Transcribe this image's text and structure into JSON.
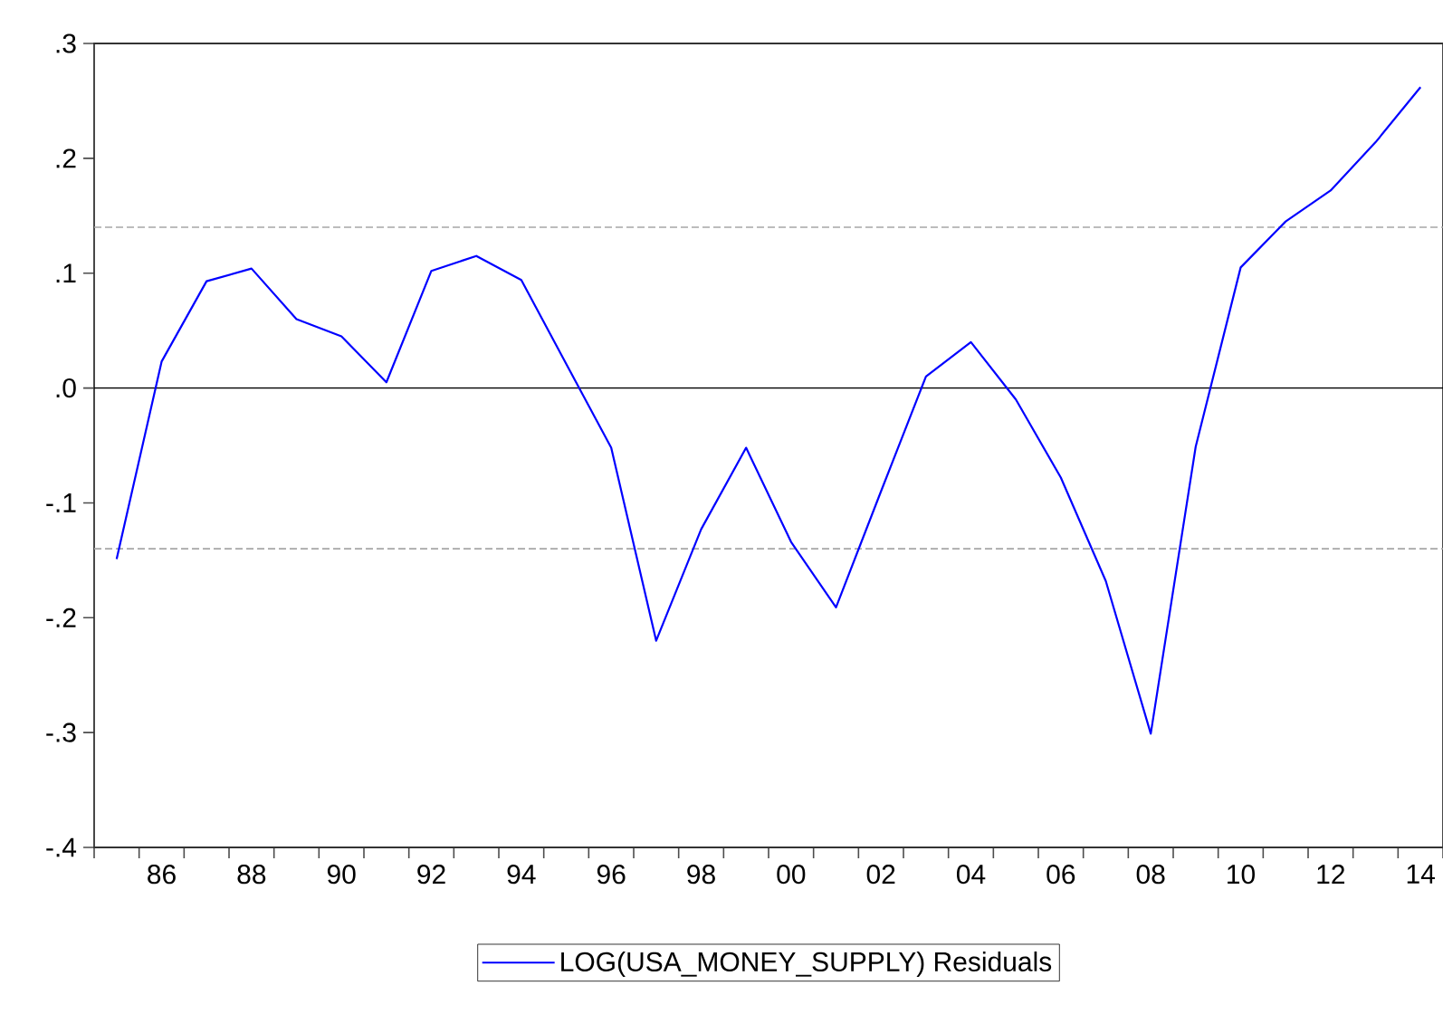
{
  "chart_data": {
    "type": "line",
    "x": [
      1985,
      1986,
      1987,
      1988,
      1989,
      1990,
      1991,
      1992,
      1993,
      1994,
      1995,
      1996,
      1997,
      1998,
      1999,
      2000,
      2001,
      2002,
      2003,
      2004,
      2005,
      2006,
      2007,
      2008,
      2009,
      2010,
      2011,
      2012,
      2013,
      2014
    ],
    "series": [
      {
        "name": "LOG(USA_MONEY_SUPPLY) Residuals",
        "color": "#0000ff",
        "values": [
          -0.149,
          0.023,
          0.093,
          0.104,
          0.06,
          0.045,
          0.005,
          0.102,
          0.115,
          0.094,
          0.021,
          -0.052,
          -0.22,
          -0.123,
          -0.052,
          -0.134,
          -0.191,
          -0.09,
          0.01,
          0.04,
          -0.01,
          -0.078,
          -0.168,
          -0.301,
          -0.051,
          0.105,
          0.145,
          0.172,
          0.214,
          0.262
        ]
      }
    ],
    "xlim": [
      1984.5,
      2014.5
    ],
    "xticks": [
      {
        "value": 1984.5,
        "label": null
      },
      {
        "value": 1985.5,
        "label": null
      },
      {
        "value": 1986,
        "label": "86"
      },
      {
        "value": 1986.5,
        "label": null
      },
      {
        "value": 1987.5,
        "label": null
      },
      {
        "value": 1988,
        "label": "88"
      },
      {
        "value": 1988.5,
        "label": null
      },
      {
        "value": 1989.5,
        "label": null
      },
      {
        "value": 1990,
        "label": "90"
      },
      {
        "value": 1990.5,
        "label": null
      },
      {
        "value": 1991.5,
        "label": null
      },
      {
        "value": 1992,
        "label": "92"
      },
      {
        "value": 1992.5,
        "label": null
      },
      {
        "value": 1993.5,
        "label": null
      },
      {
        "value": 1994,
        "label": "94"
      },
      {
        "value": 1994.5,
        "label": null
      },
      {
        "value": 1995.5,
        "label": null
      },
      {
        "value": 1996,
        "label": "96"
      },
      {
        "value": 1996.5,
        "label": null
      },
      {
        "value": 1997.5,
        "label": null
      },
      {
        "value": 1998,
        "label": "98"
      },
      {
        "value": 1998.5,
        "label": null
      },
      {
        "value": 1999.5,
        "label": null
      },
      {
        "value": 2000,
        "label": "00"
      },
      {
        "value": 2000.5,
        "label": null
      },
      {
        "value": 2001.5,
        "label": null
      },
      {
        "value": 2002,
        "label": "02"
      },
      {
        "value": 2002.5,
        "label": null
      },
      {
        "value": 2003.5,
        "label": null
      },
      {
        "value": 2004,
        "label": "04"
      },
      {
        "value": 2004.5,
        "label": null
      },
      {
        "value": 2005.5,
        "label": null
      },
      {
        "value": 2006,
        "label": "06"
      },
      {
        "value": 2006.5,
        "label": null
      },
      {
        "value": 2007.5,
        "label": null
      },
      {
        "value": 2008,
        "label": "08"
      },
      {
        "value": 2008.5,
        "label": null
      },
      {
        "value": 2009.5,
        "label": null
      },
      {
        "value": 2010,
        "label": "10"
      },
      {
        "value": 2010.5,
        "label": null
      },
      {
        "value": 2011.5,
        "label": null
      },
      {
        "value": 2012,
        "label": "12"
      },
      {
        "value": 2012.5,
        "label": null
      },
      {
        "value": 2013.5,
        "label": null
      },
      {
        "value": 2014,
        "label": "14"
      },
      {
        "value": 2014.5,
        "label": null
      }
    ],
    "ylim": [
      -0.4,
      0.3
    ],
    "yticks": [
      {
        "value": -0.4,
        "label": "-.4"
      },
      {
        "value": -0.3,
        "label": "-.3"
      },
      {
        "value": -0.2,
        "label": "-.2"
      },
      {
        "value": -0.1,
        "label": "-.1"
      },
      {
        "value": 0.0,
        "label": ".0"
      },
      {
        "value": 0.1,
        "label": ".1"
      },
      {
        "value": 0.2,
        "label": ".2"
      },
      {
        "value": 0.3,
        "label": ".3"
      }
    ],
    "ref_lines": [
      {
        "axis": "y",
        "value": 0.14,
        "color": "#a6a6a6",
        "line_style": "dashed"
      },
      {
        "axis": "y",
        "value": 0.0,
        "color": "#000000",
        "line_style": "solid"
      },
      {
        "axis": "y",
        "value": -0.14,
        "color": "#a6a6a6",
        "line_style": "dashed"
      }
    ],
    "grid": false,
    "legend": "bottom",
    "marker": "none",
    "line_style": "solid"
  }
}
